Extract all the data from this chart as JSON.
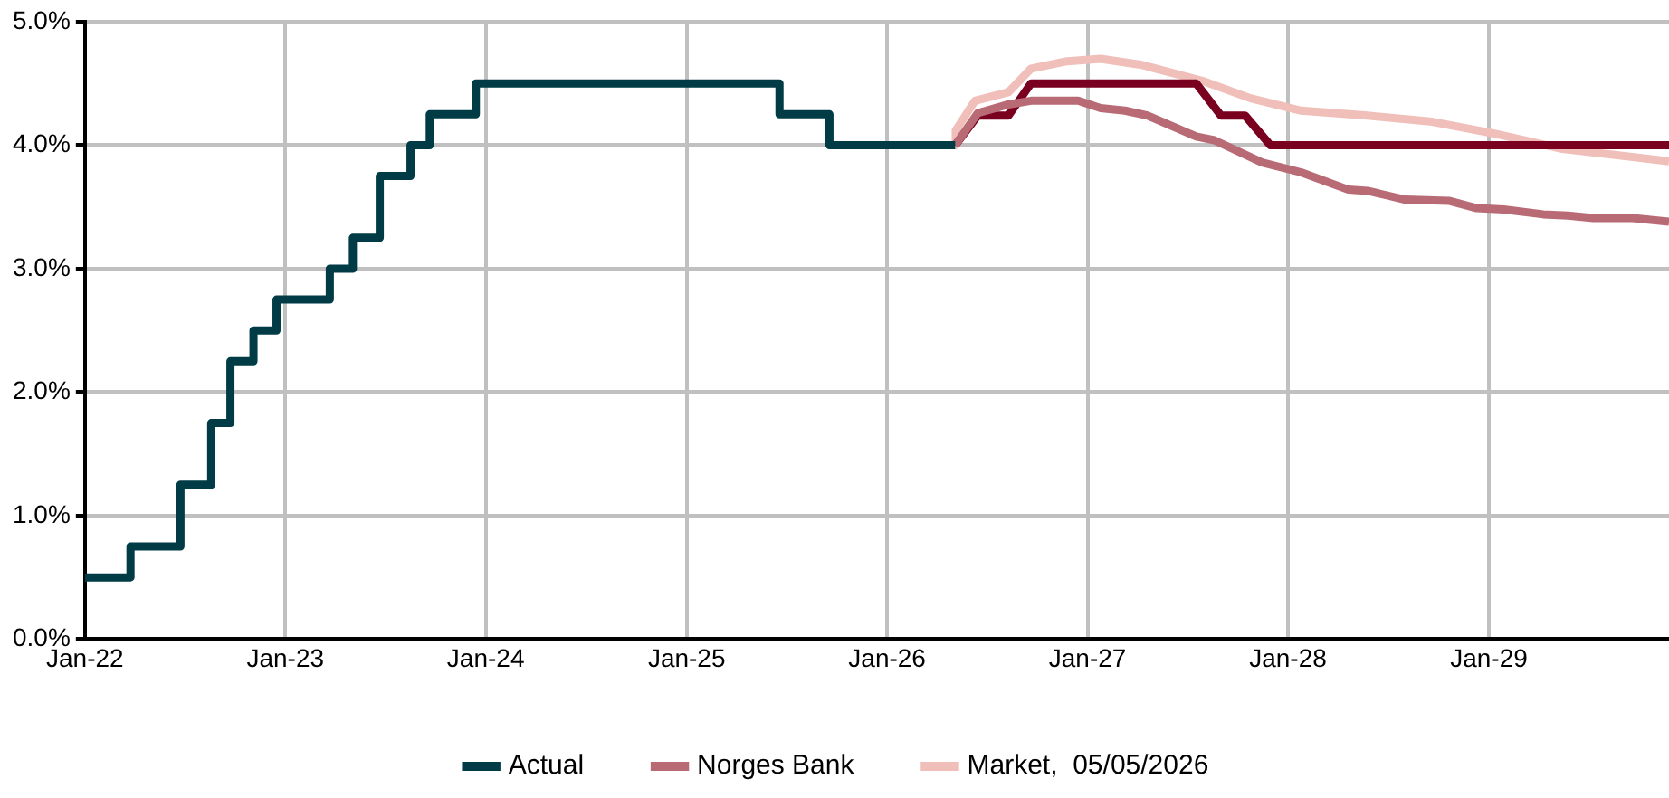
{
  "chart_data": {
    "type": "line",
    "xlim": [
      "2022-01-01",
      "2029-11-25"
    ],
    "xticks": [
      {
        "value": "2022-01-01",
        "label": "Jan-22"
      },
      {
        "value": "2023-01-01",
        "label": "Jan-23"
      },
      {
        "value": "2024-01-01",
        "label": "Jan-24"
      },
      {
        "value": "2025-01-01",
        "label": "Jan-25"
      },
      {
        "value": "2026-01-01",
        "label": "Jan-26"
      },
      {
        "value": "2027-01-01",
        "label": "Jan-27"
      },
      {
        "value": "2028-01-01",
        "label": "Jan-28"
      },
      {
        "value": "2029-01-01",
        "label": "Jan-29"
      }
    ],
    "ylim": [
      0,
      5
    ],
    "yticks": [
      {
        "value": 0,
        "label": "0.0%"
      },
      {
        "value": 1,
        "label": "1.0%"
      },
      {
        "value": 2,
        "label": "2.0%"
      },
      {
        "value": 3,
        "label": "3.0%"
      },
      {
        "value": 4,
        "label": "4.0%"
      },
      {
        "value": 5,
        "label": "5.0%"
      }
    ],
    "grid": true,
    "legend": "bottom",
    "marker": "none",
    "line_style": "solid",
    "series": [
      {
        "name": "Actual",
        "type": "step",
        "color": "#003b46",
        "x": [
          "2022-01-01",
          "2022-03-25",
          "2022-06-24",
          "2022-08-19",
          "2022-09-23",
          "2022-11-04",
          "2022-12-16",
          "2023-03-23",
          "2023-05-04",
          "2023-06-22",
          "2023-08-17",
          "2023-09-21",
          "2023-12-14",
          "2025-06-19",
          "2025-09-18",
          "2026-05-05"
        ],
        "values": [
          0.5,
          0.75,
          1.25,
          1.75,
          2.25,
          2.5,
          2.75,
          3.0,
          3.25,
          3.75,
          4.0,
          4.25,
          4.5,
          4.25,
          4.0,
          4.0
        ]
      },
      {
        "name": "Norges Bank",
        "color": "#b86b75",
        "x": [
          "2026-05-05",
          "2026-06-15",
          "2026-08-10",
          "2026-09-20",
          "2026-12-15",
          "2027-01-25",
          "2027-03-10",
          "2027-04-20",
          "2027-07-18",
          "2027-08-20",
          "2027-11-15",
          "2028-01-25",
          "2028-04-20",
          "2028-05-25",
          "2028-08-01",
          "2028-10-20",
          "2028-12-10",
          "2029-01-28",
          "2029-04-10",
          "2029-05-25",
          "2029-07-10",
          "2029-09-20",
          "2029-11-25"
        ],
        "values": [
          4.0,
          4.26,
          4.33,
          4.36,
          4.36,
          4.3,
          4.28,
          4.24,
          4.07,
          4.04,
          3.86,
          3.78,
          3.64,
          3.63,
          3.56,
          3.55,
          3.49,
          3.48,
          3.44,
          3.43,
          3.41,
          3.41,
          3.38
        ]
      },
      {
        "color": "#7a0020",
        "x": [
          "2026-05-05",
          "2026-06-15",
          "2026-08-10",
          "2026-09-20",
          "2027-07-18",
          "2027-09-01",
          "2027-10-15",
          "2027-11-30",
          "2029-11-25"
        ],
        "values": [
          4.0,
          4.24,
          4.24,
          4.5,
          4.5,
          4.24,
          4.24,
          4.0,
          4.0
        ]
      },
      {
        "name": "Market,  05/05/2026",
        "color": "#f0bfba",
        "x": [
          "2026-05-05",
          "2026-05-06",
          "2026-06-10",
          "2026-08-10",
          "2026-09-20",
          "2026-11-25",
          "2027-01-25",
          "2027-04-10",
          "2027-07-30",
          "2027-10-25",
          "2028-01-25",
          "2028-05-25",
          "2028-09-20",
          "2029-01-15",
          "2029-05-15",
          "2029-11-25"
        ],
        "values": [
          4.0,
          4.12,
          4.36,
          4.43,
          4.62,
          4.68,
          4.7,
          4.65,
          4.52,
          4.38,
          4.28,
          4.24,
          4.19,
          4.09,
          3.97,
          3.87
        ]
      }
    ]
  }
}
